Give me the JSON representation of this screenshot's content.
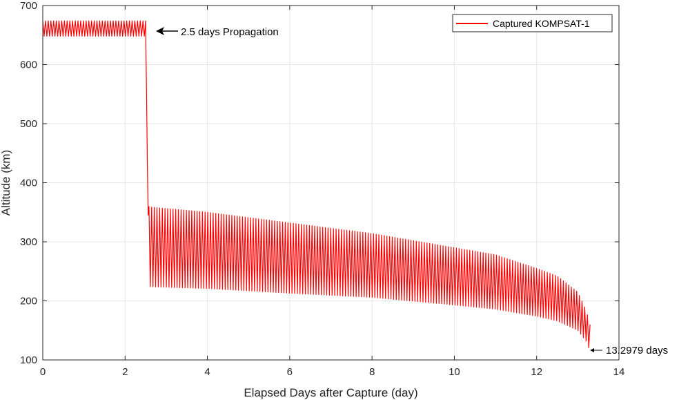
{
  "chart_data": {
    "type": "line",
    "title": "",
    "xlabel": "Elapsed Days after Capture (day)",
    "ylabel": "Altitude (km)",
    "xlim": [
      0,
      14
    ],
    "ylim": [
      100,
      700
    ],
    "xticks": [
      0,
      2,
      4,
      6,
      8,
      10,
      12,
      14
    ],
    "yticks": [
      100,
      200,
      300,
      400,
      500,
      600,
      700
    ],
    "grid": true,
    "legend_position": "top-right",
    "series": [
      {
        "name": "Captured KOMPSAT-1",
        "color": "#ff0000",
        "segments": [
          {
            "x_start": 0,
            "x_end": 2.5,
            "upper": 674,
            "lower": 648,
            "oscillation_cycles": 38
          },
          {
            "x_start": 2.58,
            "x_end": 13.2979,
            "oscillation_cycles": 165,
            "upper": [
              [
                2.58,
                359
              ],
              [
                4,
                350
              ],
              [
                6,
                332
              ],
              [
                8,
                314
              ],
              [
                10,
                290
              ],
              [
                11,
                278
              ],
              [
                12,
                255
              ],
              [
                12.5,
                242
              ],
              [
                13,
                215
              ],
              [
                13.2,
                185
              ],
              [
                13.2979,
                160
              ]
            ],
            "lower": [
              [
                2.58,
                224
              ],
              [
                4,
                221
              ],
              [
                6,
                213
              ],
              [
                8,
                206
              ],
              [
                10,
                193
              ],
              [
                11,
                186
              ],
              [
                12,
                174
              ],
              [
                12.5,
                166
              ],
              [
                13,
                150
              ],
              [
                13.2,
                132
              ],
              [
                13.2979,
                115
              ]
            ]
          }
        ],
        "drop_transition": [
          [
            2.5,
            660
          ],
          [
            2.52,
            560
          ],
          [
            2.54,
            440
          ],
          [
            2.56,
            345
          ],
          [
            2.58,
            360
          ]
        ]
      }
    ],
    "annotations": [
      {
        "text": "2.5 days Propagation",
        "x": 2.5,
        "y": 655
      },
      {
        "text": "13.2979 days",
        "x": 13.2979,
        "y": 115
      }
    ],
    "tick_labels_x": [
      "0",
      "2",
      "4",
      "6",
      "8",
      "10",
      "12",
      "14"
    ],
    "tick_labels_y": [
      "100",
      "200",
      "300",
      "400",
      "500",
      "600",
      "700"
    ]
  }
}
